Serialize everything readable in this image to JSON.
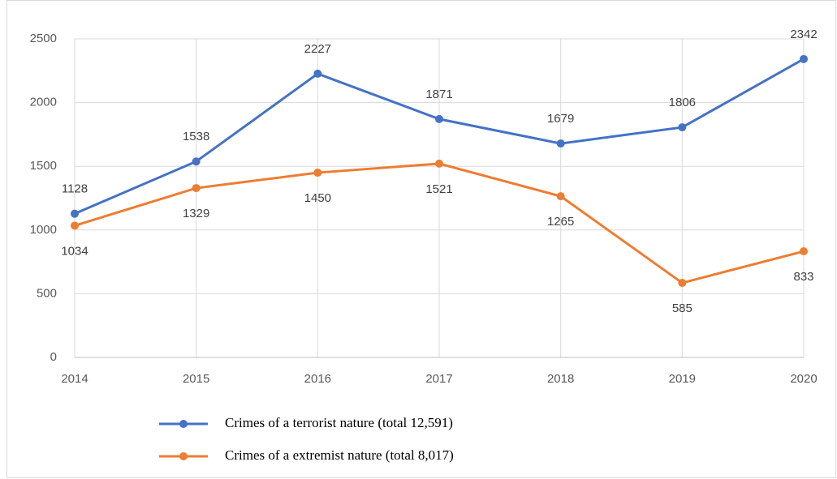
{
  "chart_data": {
    "type": "line",
    "categories": [
      "2014",
      "2015",
      "2016",
      "2017",
      "2018",
      "2019",
      "2020"
    ],
    "series": [
      {
        "name": "Crimes of a terrorist nature (total 12,591)",
        "color": "#4472c4",
        "values": [
          1128,
          1538,
          2227,
          1871,
          1679,
          1806,
          2342
        ]
      },
      {
        "name": "Crimes of a extremist nature (total 8,017)",
        "color": "#ed7d31",
        "values": [
          1034,
          1329,
          1450,
          1521,
          1265,
          585,
          833
        ]
      }
    ],
    "ylim": [
      0,
      2500
    ],
    "yticks": [
      0,
      500,
      1000,
      1500,
      2000,
      2500
    ],
    "grid": true,
    "legend": "bottom"
  }
}
